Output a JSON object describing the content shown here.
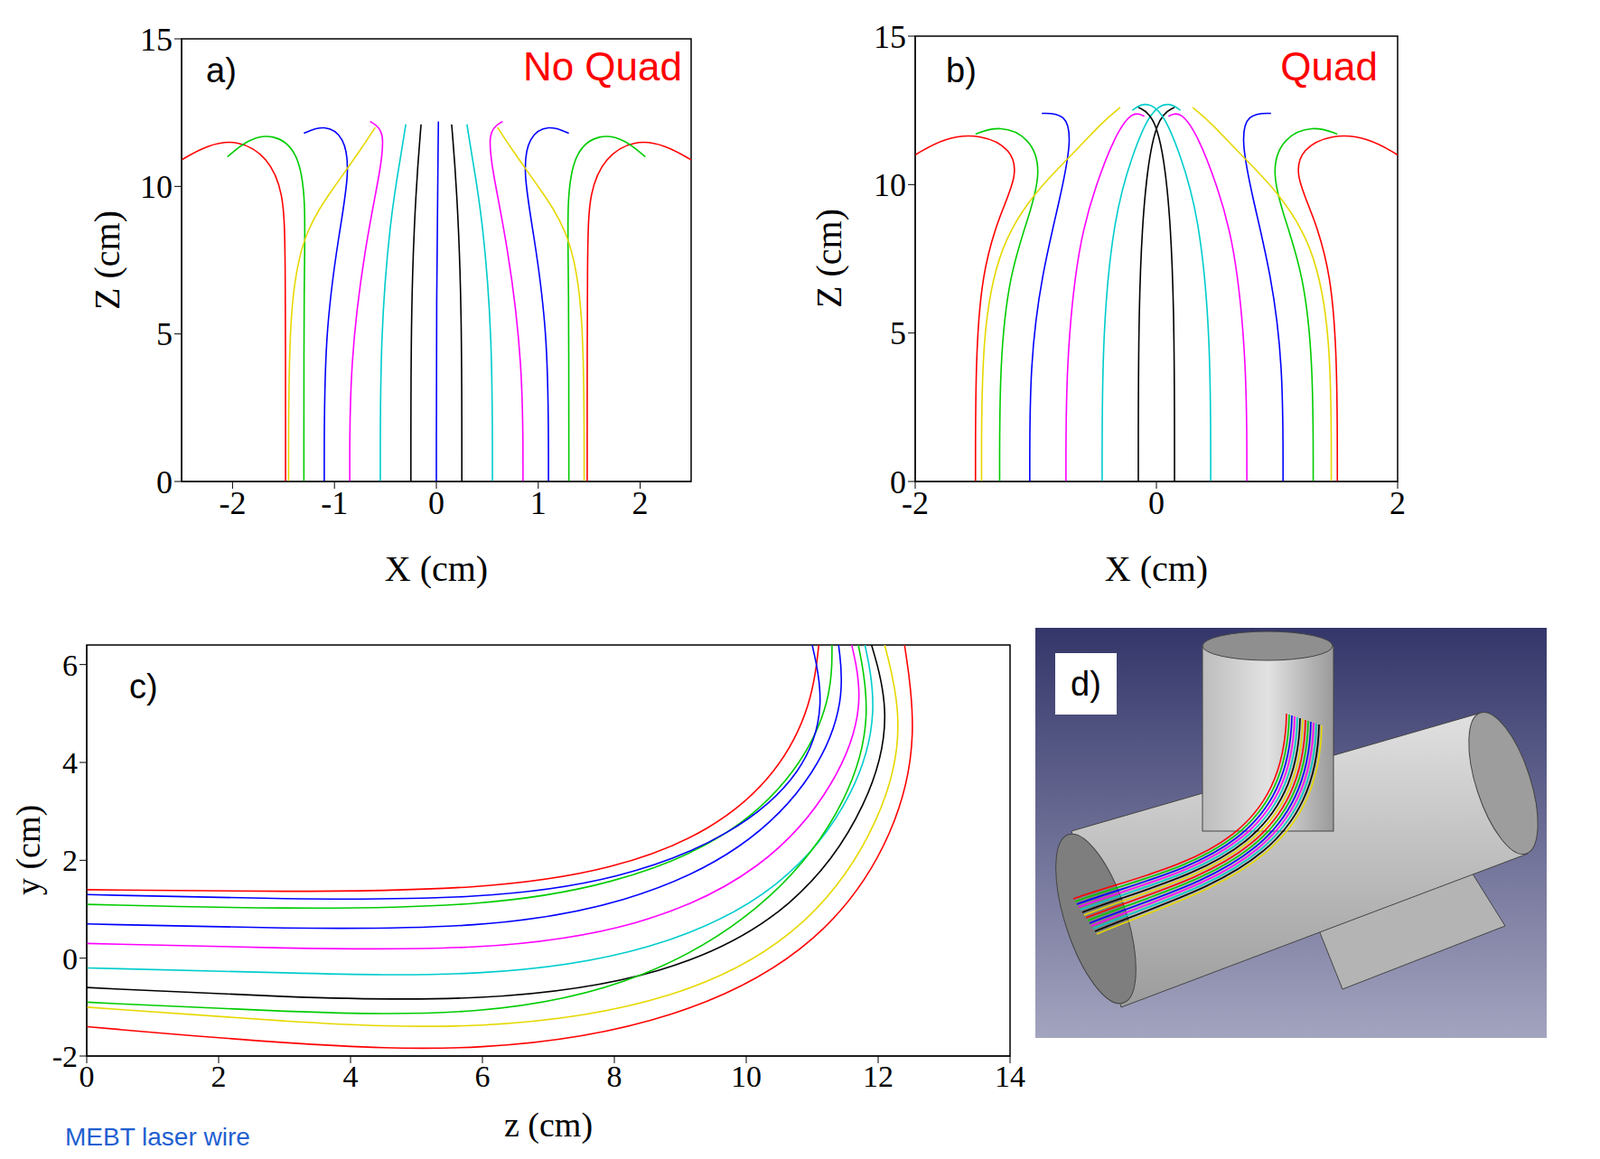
{
  "chart_data": [
    {
      "type": "line",
      "panel": "a)",
      "annotation": "No Quad",
      "x_label": "X (cm)",
      "y_label": "Z (cm)",
      "xlim": [
        -2.5,
        2.5
      ],
      "xticks": [
        -2,
        -1,
        0,
        1,
        2
      ],
      "ylim": [
        0,
        15
      ],
      "yticks": [
        0,
        5,
        10,
        15
      ],
      "grid": false,
      "series": [
        {
          "color": "#ff0000",
          "x": [
            -1.48,
            -1.48,
            -1.5,
            -1.65,
            -1.95,
            -2.25,
            -2.5
          ],
          "values": [
            0,
            8,
            9.8,
            11.0,
            11.6,
            11.4,
            10.9
          ]
        },
        {
          "color": "#00cc00",
          "x": [
            -1.3,
            -1.3,
            -1.28,
            -1.35,
            -1.6,
            -1.85,
            -2.05
          ],
          "values": [
            0,
            7,
            9.5,
            11.2,
            11.8,
            11.6,
            11.0
          ]
        },
        {
          "color": "#0000ff",
          "x": [
            -1.1,
            -1.1,
            -0.95,
            -0.85,
            -0.9,
            -1.1,
            -1.3
          ],
          "values": [
            0,
            5,
            8.5,
            10.5,
            11.7,
            12.1,
            11.8
          ]
        },
        {
          "color": "#ff00ff",
          "x": [
            -0.85,
            -0.85,
            -0.7,
            -0.55,
            -0.5,
            -0.65
          ],
          "values": [
            0,
            4,
            8,
            10.5,
            11.9,
            12.2
          ]
        },
        {
          "color": "#00cccc",
          "x": [
            -0.55,
            -0.55,
            -0.45,
            -0.35,
            -0.3
          ],
          "values": [
            0,
            5,
            9,
            11,
            12.1
          ]
        },
        {
          "color": "#000000",
          "x": [
            -0.25,
            -0.25,
            -0.2,
            -0.15
          ],
          "values": [
            0,
            6,
            10,
            12.1
          ]
        },
        {
          "color": "#e6d800",
          "x": [
            -1.45,
            -1.45,
            -1.3,
            -1.0,
            -0.75,
            -0.6
          ],
          "values": [
            0,
            6,
            8.5,
            10,
            11.2,
            12.0
          ]
        },
        {
          "color": "#ff0000",
          "x": [
            1.48,
            1.48,
            1.5,
            1.65,
            1.95,
            2.25,
            2.5
          ],
          "values": [
            0,
            8,
            9.8,
            11.0,
            11.6,
            11.4,
            10.9
          ]
        },
        {
          "color": "#00cc00",
          "x": [
            1.3,
            1.3,
            1.28,
            1.35,
            1.6,
            1.85,
            2.05
          ],
          "values": [
            0,
            7,
            9.5,
            11.2,
            11.8,
            11.6,
            11.0
          ]
        },
        {
          "color": "#0000ff",
          "x": [
            1.1,
            1.1,
            0.95,
            0.85,
            0.9,
            1.1,
            1.3
          ],
          "values": [
            0,
            5,
            8.5,
            10.5,
            11.7,
            12.1,
            11.8
          ]
        },
        {
          "color": "#ff00ff",
          "x": [
            0.85,
            0.85,
            0.7,
            0.55,
            0.5,
            0.65
          ],
          "values": [
            0,
            4,
            8,
            10.5,
            11.9,
            12.2
          ]
        },
        {
          "color": "#00cccc",
          "x": [
            0.55,
            0.55,
            0.45,
            0.35,
            0.3
          ],
          "values": [
            0,
            5,
            9,
            11,
            12.1
          ]
        },
        {
          "color": "#000000",
          "x": [
            0.25,
            0.25,
            0.2,
            0.15
          ],
          "values": [
            0,
            6,
            10,
            12.1
          ]
        },
        {
          "color": "#e6d800",
          "x": [
            1.45,
            1.45,
            1.3,
            1.0,
            0.75,
            0.6
          ],
          "values": [
            0,
            6,
            8.5,
            10,
            11.2,
            12.0
          ]
        },
        {
          "color": "#0000ff",
          "x": [
            0,
            0,
            0.02
          ],
          "values": [
            0,
            6,
            12.2
          ]
        }
      ]
    },
    {
      "type": "line",
      "panel": "b)",
      "annotation": "Quad",
      "x_label": "X (cm)",
      "y_label": "Z (cm)",
      "xlim": [
        -2,
        2
      ],
      "xticks": [
        -2,
        0,
        2
      ],
      "ylim": [
        0,
        15
      ],
      "yticks": [
        0,
        5,
        10,
        15
      ],
      "grid": false,
      "series": [
        {
          "color": "#ff0000",
          "x": [
            -1.5,
            -1.5,
            -1.45,
            -1.3,
            -1.15,
            -1.2,
            -1.45,
            -1.75,
            -2.0
          ],
          "values": [
            0,
            4,
            7,
            9,
            10.3,
            11.2,
            11.7,
            11.6,
            11.0
          ]
        },
        {
          "color": "#00cc00",
          "x": [
            -1.3,
            -1.3,
            -1.22,
            -1.05,
            -0.95,
            -1.05,
            -1.3,
            -1.5
          ],
          "values": [
            0,
            4,
            7,
            9,
            10.5,
            11.6,
            12.0,
            11.7
          ]
        },
        {
          "color": "#0000ff",
          "x": [
            -1.05,
            -1.05,
            -0.95,
            -0.8,
            -0.7,
            -0.75,
            -0.95
          ],
          "values": [
            0,
            4,
            7,
            9.5,
            11.5,
            12.4,
            12.4
          ]
        },
        {
          "color": "#ff00ff",
          "x": [
            -0.75,
            -0.75,
            -0.65,
            -0.5,
            -0.35,
            -0.2,
            -0.1
          ],
          "values": [
            0,
            4,
            8,
            10,
            11.6,
            12.5,
            12.3
          ]
        },
        {
          "color": "#00cccc",
          "x": [
            -0.45,
            -0.45,
            -0.35,
            -0.2,
            -0.05,
            0.1,
            0.2
          ],
          "values": [
            0,
            5,
            9,
            11,
            12.5,
            12.8,
            12.5
          ]
        },
        {
          "color": "#000000",
          "x": [
            -0.15,
            -0.15,
            -0.1,
            0,
            0.15
          ],
          "values": [
            0,
            6,
            10,
            12.3,
            12.6
          ]
        },
        {
          "color": "#e6d800",
          "x": [
            -1.45,
            -1.45,
            -1.3,
            -1.0,
            -0.7,
            -0.45,
            -0.3
          ],
          "values": [
            0,
            5,
            8,
            9.8,
            11,
            12.1,
            12.6
          ]
        },
        {
          "color": "#ff0000",
          "x": [
            1.5,
            1.5,
            1.45,
            1.3,
            1.15,
            1.2,
            1.45,
            1.75,
            2.0
          ],
          "values": [
            0,
            4,
            7,
            9,
            10.3,
            11.2,
            11.7,
            11.6,
            11.0
          ]
        },
        {
          "color": "#00cc00",
          "x": [
            1.3,
            1.3,
            1.22,
            1.05,
            0.95,
            1.05,
            1.3,
            1.5
          ],
          "values": [
            0,
            4,
            7,
            9,
            10.5,
            11.6,
            12.0,
            11.7
          ]
        },
        {
          "color": "#0000ff",
          "x": [
            1.05,
            1.05,
            0.95,
            0.8,
            0.7,
            0.75,
            0.95
          ],
          "values": [
            0,
            4,
            7,
            9.5,
            11.5,
            12.4,
            12.4
          ]
        },
        {
          "color": "#ff00ff",
          "x": [
            0.75,
            0.75,
            0.65,
            0.5,
            0.35,
            0.2,
            0.1
          ],
          "values": [
            0,
            4,
            8,
            10,
            11.6,
            12.5,
            12.3
          ]
        },
        {
          "color": "#00cccc",
          "x": [
            0.45,
            0.45,
            0.35,
            0.2,
            0.05,
            -0.1,
            -0.2
          ],
          "values": [
            0,
            5,
            9,
            11,
            12.5,
            12.8,
            12.5
          ]
        },
        {
          "color": "#000000",
          "x": [
            0.15,
            0.15,
            0.1,
            0,
            -0.15
          ],
          "values": [
            0,
            6,
            10,
            12.3,
            12.6
          ]
        },
        {
          "color": "#e6d800",
          "x": [
            1.45,
            1.45,
            1.3,
            1.0,
            0.7,
            0.45,
            0.3
          ],
          "values": [
            0,
            5,
            8,
            9.8,
            11,
            12.1,
            12.6
          ]
        }
      ]
    },
    {
      "type": "line",
      "panel": "c)",
      "x_label": "z (cm)",
      "y_label": "y (cm)",
      "xlim": [
        0,
        14
      ],
      "xticks": [
        0,
        2,
        4,
        6,
        8,
        10,
        12,
        14
      ],
      "ylim": [
        -2,
        6.4
      ],
      "yticks": [
        -2,
        0,
        2,
        4,
        6
      ],
      "grid": false,
      "series": [
        {
          "color": "#ff0000",
          "x": [
            0,
            3,
            6,
            8,
            9.5,
            10.5,
            11.0,
            11.1
          ],
          "values": [
            1.4,
            1.35,
            1.4,
            1.8,
            2.6,
            3.8,
            5.2,
            6.4
          ]
        },
        {
          "color": "#00cc00",
          "x": [
            0,
            3,
            6,
            8,
            9.7,
            10.8,
            11.3,
            11.3
          ],
          "values": [
            1.1,
            1.0,
            1.05,
            1.5,
            2.4,
            3.8,
            5.3,
            6.4
          ]
        },
        {
          "color": "#0000ff",
          "x": [
            0,
            3,
            6,
            8.2,
            10,
            11.1,
            11.5,
            11.4
          ],
          "values": [
            0.7,
            0.6,
            0.6,
            1.1,
            2.2,
            3.8,
            5.3,
            6.4
          ]
        },
        {
          "color": "#ff00ff",
          "x": [
            0,
            3,
            6,
            8.4,
            10.3,
            11.4,
            11.8,
            11.6
          ],
          "values": [
            0.3,
            0.2,
            0.15,
            0.6,
            1.8,
            3.6,
            5.2,
            6.4
          ]
        },
        {
          "color": "#00cccc",
          "x": [
            0,
            3,
            6,
            8.6,
            10.6,
            11.7,
            12.0,
            11.8
          ],
          "values": [
            -0.2,
            -0.3,
            -0.4,
            0.1,
            1.4,
            3.4,
            5.1,
            6.4
          ]
        },
        {
          "color": "#000000",
          "x": [
            0,
            3,
            6,
            8.8,
            10.8,
            11.9,
            12.2,
            11.9
          ],
          "values": [
            -0.6,
            -0.8,
            -0.9,
            -0.4,
            1.0,
            3.2,
            5.0,
            6.4
          ]
        },
        {
          "color": "#e6d800",
          "x": [
            0,
            3,
            6,
            9,
            11,
            12.1,
            12.4,
            12.1
          ],
          "values": [
            -1.0,
            -1.3,
            -1.5,
            -0.9,
            0.6,
            2.9,
            4.8,
            6.4
          ]
        },
        {
          "color": "#ff0000",
          "x": [
            0,
            3,
            6,
            9,
            11.2,
            12.3,
            12.6,
            12.4
          ],
          "values": [
            -1.4,
            -1.75,
            -1.95,
            -1.3,
            0.3,
            2.6,
            4.6,
            6.4
          ]
        },
        {
          "color": "#0000ff",
          "x": [
            0,
            3,
            6,
            8.1,
            9.8,
            10.9,
            11.2,
            11.0
          ],
          "values": [
            1.3,
            1.2,
            1.2,
            1.6,
            2.5,
            3.8,
            5.2,
            6.4
          ]
        },
        {
          "color": "#00cc00",
          "x": [
            0,
            3,
            6,
            8.5,
            10.5,
            11.6,
            11.9,
            11.7
          ],
          "values": [
            -0.9,
            -1.1,
            -1.2,
            -0.5,
            1.2,
            3.3,
            5.0,
            6.4
          ]
        }
      ]
    }
  ],
  "diagram": {
    "panel": "d)"
  },
  "footnote": "MEBT laser wire"
}
